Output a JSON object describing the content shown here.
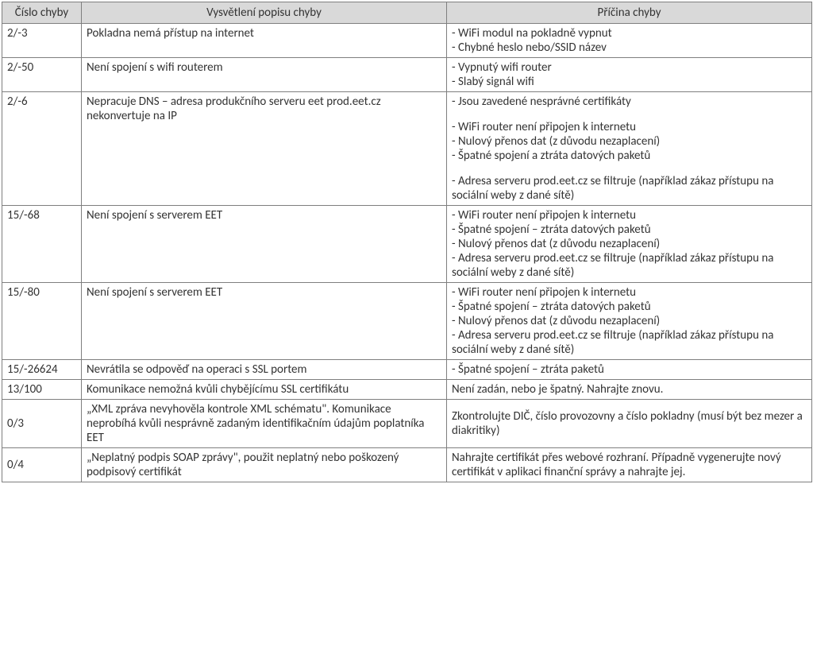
{
  "table": {
    "headers": {
      "code": "Číslo chyby",
      "description": "Vysvětlení popisu chyby",
      "cause": "Příčina chyby"
    },
    "rows": [
      {
        "code": "2/-3",
        "description": "Pokladna nemá přístup na internet",
        "causes": [
          "-  WiFi modul na pokladně vypnut",
          "- Chybné heslo nebo/SSID název"
        ],
        "code_valign": "top"
      },
      {
        "code": "2/-50",
        "description": "Není spojení s wifi routerem",
        "causes": [
          "- Vypnutý wifi router",
          "- Slabý signál wifi"
        ],
        "code_valign": "top"
      },
      {
        "code": "2/-6",
        "description": "Nepracuje DNS – adresa produkčního serveru eet prod.eet.cz nekonvertuje na IP",
        "causes_groups": [
          [
            "- Jsou zavedené nesprávné certifikáty"
          ],
          [
            "- WiFi router není připojen k internetu",
            "- Nulový přenos dat (z důvodu nezaplacení)",
            "- Špatné spojení a ztráta datových paketů"
          ],
          [
            "- Adresa serveru prod.eet.cz se filtruje (například zákaz přístupu na sociální weby z dané sítě)"
          ]
        ],
        "code_valign": "top"
      },
      {
        "code": "15/-68",
        "description": "Není spojení s serverem EET",
        "causes": [
          "-  WiFi router není připojen k internetu",
          "- Špatné spojení – ztráta datových paketů",
          "- Nulový přenos dat (z důvodu nezaplacení)",
          "- Adresa serveru prod.eet.cz se filtruje (například zákaz přístupu na sociální weby z dané sítě)"
        ],
        "code_valign": "top"
      },
      {
        "code": "15/-80",
        "description": "Není spojení s serverem EET",
        "causes": [
          "- WiFi router není připojen k internetu",
          "- Špatné spojení – ztráta datových paketů",
          "- Nulový přenos dat (z důvodu nezaplacení)",
          "- Adresa serveru prod.eet.cz se filtruje (například zákaz přístupu na sociální weby z dané sítě)"
        ],
        "code_valign": "top"
      },
      {
        "code": "15/-26624",
        "description": "Nevrátila se odpověď na operaci s SSL portem",
        "causes": [
          "- Špatné spojení – ztráta paketů"
        ],
        "code_valign": "top"
      },
      {
        "code": "13/100",
        "description": "Komunikace nemožná kvůli chybějícímu SSL certifikátu",
        "causes": [
          "Není zadán, nebo je špatný. Nahrajte znovu."
        ],
        "code_valign": "top"
      },
      {
        "code": "0/3",
        "description": "„XML zpráva nevyhověla kontrole XML schématu\". Komunikace neprobíhá kvůli nesprávně zadaným identifikačním údajům poplatníka EET",
        "causes": [
          "Zkontrolujte DIČ, číslo provozovny a číslo pokladny (musí být bez mezer a diakritiky)"
        ],
        "code_valign": "middle"
      },
      {
        "code": "0/4",
        "description": "„Neplatný podpis SOAP zprávy\", použit neplatný nebo poškozený podpisový certifikát",
        "causes": [
          "Nahrajte certifikát přes webové rozhraní. Případně vygenerujte nový certifikát v aplikaci finanční správy a nahrajte jej."
        ],
        "code_valign": "middle"
      }
    ]
  }
}
